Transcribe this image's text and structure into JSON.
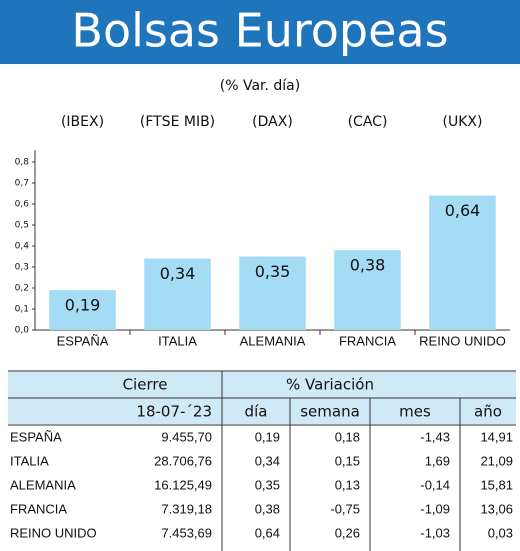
{
  "chart_data": {
    "type": "bar",
    "title": "Bolsas Europeas",
    "subtitle": "(% Var. día)",
    "categories": [
      "ESPAÑA",
      "ITALIA",
      "ALEMANIA",
      "FRANCIA",
      "REINO UNIDO"
    ],
    "category_codes": [
      "(IBEX)",
      "(FTSE MIB)",
      "(DAX)",
      "(CAC)",
      "(UKX)"
    ],
    "values": [
      0.19,
      0.34,
      0.35,
      0.38,
      0.64
    ],
    "value_labels": [
      "0,19",
      "0,34",
      "0,35",
      "0,38",
      "0,64"
    ],
    "color": "#a3dcf4",
    "ylim": [
      0,
      0.8
    ],
    "yticks": [
      {
        "value": 0,
        "label": "0,0"
      },
      {
        "value": 0.1,
        "label": "0,1"
      },
      {
        "value": 0.2,
        "label": "0,2"
      },
      {
        "value": 0.3,
        "label": "0,3"
      },
      {
        "value": 0.4,
        "label": "0,4"
      },
      {
        "value": 0.5,
        "label": "0,5"
      },
      {
        "value": 0.6,
        "label": "0,6"
      },
      {
        "value": 0.7,
        "label": "0,7"
      },
      {
        "value": 0.8,
        "label": "0,8"
      }
    ],
    "grid": false
  },
  "table": {
    "group_headers": [
      "Cierre",
      "% Variación"
    ],
    "columns": [
      "18-07-´23",
      "día",
      "semana",
      "mes",
      "año"
    ],
    "rows": [
      [
        "ESPAÑA",
        "9.455,70",
        "0,19",
        "0,18",
        "-1,43",
        "14,91"
      ],
      [
        "ITALIA",
        "28.706,76",
        "0,34",
        "0,15",
        "1,69",
        "21,09"
      ],
      [
        "ALEMANIA",
        "16.125,49",
        "0,35",
        "0,13",
        "-0,14",
        "15,81"
      ],
      [
        "FRANCIA",
        "7.319,18",
        "0,38",
        "-0,75",
        "-1,09",
        "13,06"
      ],
      [
        "REINO UNIDO",
        "7.453,69",
        "0,64",
        "0,26",
        "-1,03",
        "0,03"
      ]
    ]
  }
}
